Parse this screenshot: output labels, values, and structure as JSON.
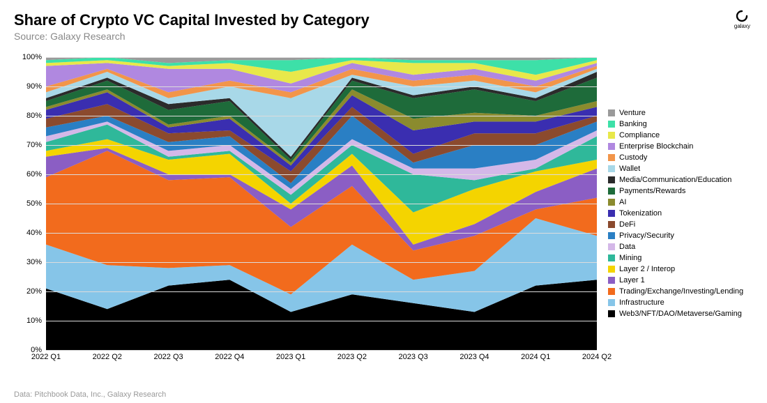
{
  "header": {
    "title": "Share of Crypto VC Capital Invested by Category",
    "subtitle": "Source: Galaxy Research"
  },
  "logo": {
    "text": "galaxy"
  },
  "footer": "Data: Pitchbook Data, Inc., Galaxy Research",
  "chart": {
    "type": "stacked-area",
    "x_categories": [
      "2022 Q1",
      "2022 Q2",
      "2022 Q3",
      "2022 Q4",
      "2023 Q1",
      "2023 Q2",
      "2023 Q3",
      "2023 Q4",
      "2024 Q1",
      "2024 Q2"
    ],
    "y_ticks": [
      0,
      10,
      20,
      30,
      40,
      50,
      60,
      70,
      80,
      90,
      100
    ],
    "y_suffix": "%",
    "ylim": [
      0,
      100
    ],
    "background_color": "#ffffff",
    "grid_color": "#dcdcdc",
    "tick_fontsize": 11,
    "series": [
      {
        "name": "Web3/NFT/DAO/Metaverse/Gaming",
        "color": "#000000",
        "values": [
          21,
          14,
          22,
          24,
          13,
          19,
          16,
          13,
          22,
          24
        ]
      },
      {
        "name": "Infrastructure",
        "color": "#86c5e8",
        "values": [
          15,
          15,
          6,
          5,
          6,
          17,
          8,
          14,
          23,
          15
        ]
      },
      {
        "name": "Trading/Exchange/Investing/Lending",
        "color": "#f26b1d",
        "values": [
          23,
          39,
          30,
          30,
          23,
          20,
          10,
          12,
          3,
          13
        ]
      },
      {
        "name": "Layer 1",
        "color": "#8b5ec4",
        "values": [
          7,
          1,
          2,
          1,
          6,
          7,
          2,
          4,
          6,
          10
        ]
      },
      {
        "name": "Layer 2 / Interop",
        "color": "#f4d400",
        "values": [
          2,
          3,
          5,
          7,
          2,
          4,
          11,
          12,
          7,
          3
        ]
      },
      {
        "name": "Mining",
        "color": "#2fb89a",
        "values": [
          3,
          5,
          1,
          1,
          3,
          3,
          13,
          3,
          1,
          8
        ]
      },
      {
        "name": "Data",
        "color": "#d4b8e8",
        "values": [
          2,
          1,
          2,
          2,
          2,
          2,
          2,
          4,
          3,
          2
        ]
      },
      {
        "name": "Privacy/Security",
        "color": "#2a7fc4",
        "values": [
          3,
          2,
          3,
          3,
          2,
          8,
          2,
          8,
          5,
          3
        ]
      },
      {
        "name": "DeFi",
        "color": "#8b4a2e",
        "values": [
          3,
          4,
          3,
          2,
          4,
          3,
          3,
          4,
          4,
          2
        ]
      },
      {
        "name": "Tokenization",
        "color": "#3a2eb0",
        "values": [
          3,
          4,
          2,
          4,
          2,
          4,
          8,
          4,
          4,
          3
        ]
      },
      {
        "name": "AI",
        "color": "#8b8b2e",
        "values": [
          1,
          1,
          1,
          1,
          1,
          2,
          4,
          3,
          2,
          2
        ]
      },
      {
        "name": "Payments/Rewards",
        "color": "#1e6b3a",
        "values": [
          2,
          3,
          5,
          5,
          1,
          3,
          7,
          8,
          5,
          8
        ]
      },
      {
        "name": "Media/Communication/Education",
        "color": "#2b2b2b",
        "values": [
          1,
          1,
          2,
          1,
          1,
          1,
          1,
          1,
          1,
          2
        ]
      },
      {
        "name": "Wallet",
        "color": "#a8d8e8",
        "values": [
          2,
          2,
          2,
          4,
          20,
          1,
          3,
          2,
          2,
          1
        ]
      },
      {
        "name": "Custody",
        "color": "#f2954a",
        "values": [
          2,
          1,
          2,
          2,
          2,
          2,
          2,
          2,
          2,
          1
        ]
      },
      {
        "name": "Enterprise Blockchain",
        "color": "#b088e0",
        "values": [
          7,
          2,
          8,
          4,
          3,
          2,
          2,
          2,
          2,
          1
        ]
      },
      {
        "name": "Compliance",
        "color": "#e8e84a",
        "values": [
          1,
          1,
          1,
          2,
          4,
          1,
          4,
          2,
          2,
          1
        ]
      },
      {
        "name": "Banking",
        "color": "#3de0a8",
        "values": [
          1,
          1,
          1,
          1,
          4,
          1,
          1,
          1,
          5,
          1
        ]
      },
      {
        "name": "Venture",
        "color": "#9a9a9a",
        "values": [
          1,
          0,
          2,
          1,
          1,
          0,
          1,
          1,
          1,
          0
        ]
      }
    ]
  },
  "legend": {
    "order": "top-to-bottom-reverse-of-stack"
  }
}
